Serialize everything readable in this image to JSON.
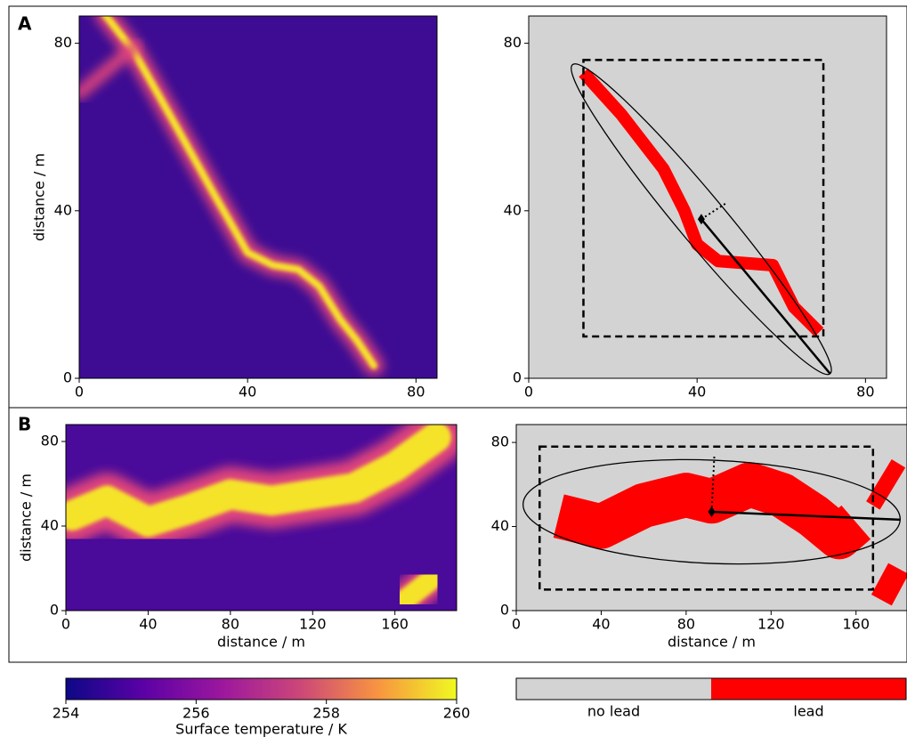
{
  "panel_labels": [
    "A",
    "B"
  ],
  "chart_data": [
    {
      "type": "image",
      "colormap": "plasma",
      "ylabel": "distance / m",
      "xlim": [
        0,
        85
      ],
      "ylim": [
        0,
        86.5
      ],
      "xticks": [
        0,
        40,
        80
      ],
      "yticks": [
        0,
        40,
        80
      ]
    },
    {
      "type": "mask",
      "xlim": [
        0,
        85
      ],
      "ylim": [
        0,
        86.5
      ],
      "xticks": [
        0,
        40,
        80
      ],
      "yticks": [
        0,
        40,
        80
      ],
      "box": {
        "x": [
          13,
          70
        ],
        "y": [
          10,
          76
        ]
      },
      "centroid": [
        41,
        38
      ]
    },
    {
      "type": "image",
      "colormap": "plasma",
      "xlabel": "distance / m",
      "ylabel": "distance / m",
      "xlim": [
        0,
        190
      ],
      "ylim": [
        0,
        88
      ],
      "xticks": [
        0,
        40,
        80,
        120,
        160
      ],
      "yticks": [
        0,
        40,
        80
      ]
    },
    {
      "type": "mask",
      "xlabel": "distance / m",
      "xlim": [
        0,
        184
      ],
      "ylim": [
        0,
        88.5
      ],
      "xticks": [
        0,
        40,
        80,
        120,
        160
      ],
      "yticks": [
        0,
        40,
        80
      ],
      "box": {
        "x": [
          11,
          168
        ],
        "y": [
          10,
          78
        ]
      },
      "centroid": [
        92,
        47
      ]
    },
    {
      "type": "colorbar",
      "colormap": "plasma",
      "label": "Surface temperature / K",
      "lim": [
        254,
        260
      ],
      "ticks": [
        254,
        256,
        258,
        260
      ]
    },
    {
      "type": "legendbar",
      "categories": [
        "no lead",
        "lead"
      ],
      "colors": [
        "#d3d3d3",
        "#ff0000"
      ]
    }
  ]
}
